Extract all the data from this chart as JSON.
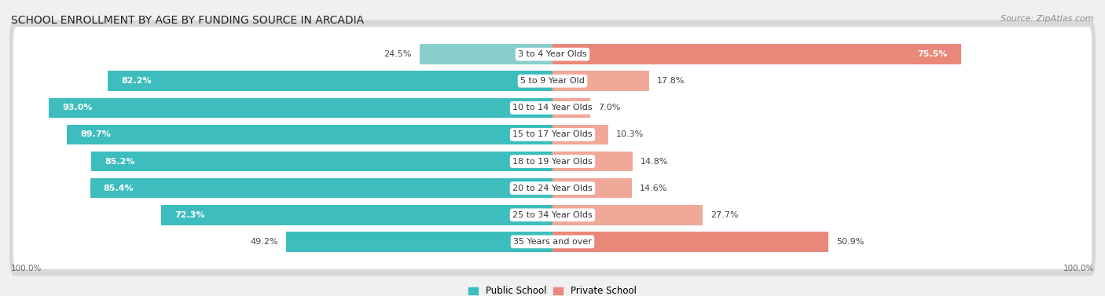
{
  "title": "SCHOOL ENROLLMENT BY AGE BY FUNDING SOURCE IN ARCADIA",
  "source": "Source: ZipAtlas.com",
  "categories": [
    "3 to 4 Year Olds",
    "5 to 9 Year Old",
    "10 to 14 Year Olds",
    "15 to 17 Year Olds",
    "18 to 19 Year Olds",
    "20 to 24 Year Olds",
    "25 to 34 Year Olds",
    "35 Years and over"
  ],
  "public_values": [
    24.5,
    82.2,
    93.0,
    89.7,
    85.2,
    85.4,
    72.3,
    49.2
  ],
  "private_values": [
    75.5,
    17.8,
    7.0,
    10.3,
    14.8,
    14.6,
    27.7,
    50.9
  ],
  "public_colors": [
    "#87CECC",
    "#3DBDBD",
    "#3DBDBD",
    "#3DBDBD",
    "#3DBDBD",
    "#3DBDBD",
    "#3DBDBD",
    "#3DBDBD"
  ],
  "private_colors": [
    "#E8877A",
    "#F0A898",
    "#F0A898",
    "#F0A898",
    "#F0A898",
    "#F0A898",
    "#F0A898",
    "#E8877A"
  ],
  "bg_color": "#f0f0f0",
  "row_bg_color": "#ffffff",
  "row_border_color": "#d8d8d8",
  "title_fontsize": 10,
  "bar_label_fontsize": 8,
  "cat_label_fontsize": 8,
  "legend_fontsize": 8.5,
  "source_fontsize": 8
}
